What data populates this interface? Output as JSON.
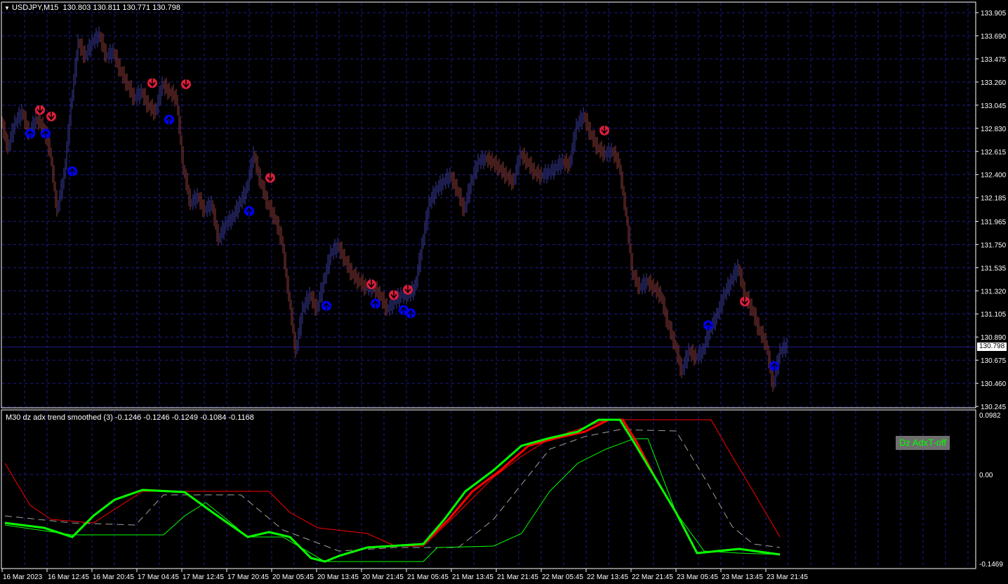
{
  "header": {
    "symbol": "USDJPY,M15",
    "ohlc": "130.803 130.811 130.771 130.798",
    "menu_icon": "triangle-down-icon"
  },
  "indicator": {
    "title": "M30 dz adx trend smoothed (3) -0.1246 -0.1246 -0.1249 -0.1084 -0.1168",
    "button_label": "Dz AdxT-off"
  },
  "colors": {
    "grid": "#1c1c8c",
    "sell": "#dc1e3c",
    "buy": "#0000ff",
    "line_green": "#00ff00",
    "line_red": "#ff0000",
    "dashed": "#a0a0a0",
    "price_line": "#1c1c8c"
  },
  "chart_data": [
    {
      "type": "candlestick-approx",
      "title": "USDJPY,M15",
      "ylim": [
        130.245,
        133.905
      ],
      "yticks": [
        "133.905",
        "133.690",
        "133.475",
        "133.260",
        "133.045",
        "132.830",
        "132.615",
        "132.400",
        "132.185",
        "131.965",
        "131.750",
        "131.535",
        "131.320",
        "131.105",
        "130.890",
        "130.675",
        "130.460",
        "130.245"
      ],
      "current_price": "130.798",
      "bar_step": 5,
      "closes": [
        132.91,
        132.65,
        132.88,
        132.98,
        132.78,
        132.91,
        132.85,
        132.62,
        132.07,
        132.39,
        133.04,
        133.63,
        133.5,
        133.63,
        133.7,
        133.5,
        133.54,
        133.37,
        133.24,
        133.11,
        133.17,
        133.04,
        132.98,
        133.24,
        133.17,
        133.11,
        132.46,
        132.13,
        132.2,
        132.07,
        132.13,
        131.8,
        131.94,
        132.0,
        132.13,
        132.26,
        132.59,
        132.33,
        132.13,
        132.0,
        131.8,
        131.28,
        130.76,
        131.15,
        131.28,
        131.15,
        131.41,
        131.67,
        131.74,
        131.61,
        131.48,
        131.41,
        131.35,
        131.35,
        131.28,
        131.15,
        131.22,
        131.28,
        131.28,
        131.35,
        131.74,
        132.13,
        132.26,
        132.33,
        132.39,
        132.26,
        132.07,
        132.33,
        132.52,
        132.55,
        132.52,
        132.46,
        132.39,
        132.33,
        132.59,
        132.52,
        132.42,
        132.39,
        132.42,
        132.46,
        132.52,
        132.49,
        132.85,
        132.95,
        132.78,
        132.65,
        132.59,
        132.62,
        132.52,
        132.07,
        131.48,
        131.35,
        131.41,
        131.35,
        131.28,
        131.02,
        130.83,
        130.57,
        130.76,
        130.7,
        130.76,
        130.96,
        131.09,
        131.28,
        131.41,
        131.54,
        131.28,
        131.15,
        130.96,
        130.83,
        130.44,
        130.76,
        130.81
      ],
      "sell_signals": [
        [
          27,
          133.0
        ],
        [
          35,
          132.94
        ],
        [
          107,
          133.25
        ],
        [
          131,
          133.24
        ],
        [
          191,
          132.37
        ],
        [
          263,
          131.38
        ],
        [
          279,
          131.28
        ],
        [
          289,
          131.33
        ],
        [
          429,
          132.81
        ],
        [
          529,
          131.22
        ]
      ],
      "buy_signals": [
        [
          20,
          132.78
        ],
        [
          31,
          132.78
        ],
        [
          50,
          132.43
        ],
        [
          119,
          132.91
        ],
        [
          176,
          132.06
        ],
        [
          231,
          131.18
        ],
        [
          266,
          131.2
        ],
        [
          286,
          131.14
        ],
        [
          291,
          131.11
        ],
        [
          503,
          131.0
        ],
        [
          550,
          130.62
        ]
      ],
      "xticks": [
        "16 Mar 2023",
        "16 Mar 12:45",
        "16 Mar 20:45",
        "17 Mar 04:45",
        "17 Mar 12:45",
        "17 Mar 20:45",
        "20 Mar 05:45",
        "20 Mar 13:45",
        "20 Mar 21:45",
        "21 Mar 05:45",
        "21 Mar 13:45",
        "21 Mar 21:45",
        "22 Mar 05:45",
        "22 Mar 13:45",
        "22 Mar 21:45",
        "23 Mar 05:45",
        "23 Mar 13:45",
        "23 Mar 21:45"
      ]
    },
    {
      "type": "line",
      "title": "M30 dz adx trend smoothed (3)",
      "ylim": [
        -0.1469,
        0.0982
      ],
      "yticks": [
        "0.0982",
        "0.00",
        "-0.1469"
      ],
      "series": [
        {
          "color": "#a0a0a0",
          "style": "dashed",
          "width": 1,
          "points": [
            [
              2,
              -0.0681
            ],
            [
              50,
              -0.0797
            ],
            [
              95,
              -0.0831
            ],
            [
              115,
              -0.0335
            ],
            [
              170,
              -0.0335
            ],
            [
              200,
              -0.0912
            ],
            [
              240,
              -0.1259
            ],
            [
              280,
              -0.1201
            ],
            [
              325,
              -0.1201
            ],
            [
              350,
              -0.0739
            ],
            [
              370,
              -0.0162
            ],
            [
              390,
              0.0416
            ],
            [
              415,
              0.0624
            ],
            [
              440,
              0.0739
            ],
            [
              480,
              0.0716
            ],
            [
              500,
              -0.0046
            ],
            [
              520,
              -0.0855
            ],
            [
              535,
              -0.1143
            ],
            [
              554,
              -0.1201
            ]
          ]
        },
        {
          "color": "#ff0000",
          "style": "solid",
          "width": 1,
          "points": [
            [
              2,
              0.0185
            ],
            [
              20,
              -0.0508
            ],
            [
              35,
              -0.0739
            ],
            [
              65,
              -0.0797
            ],
            [
              100,
              -0.0277
            ],
            [
              190,
              -0.0277
            ],
            [
              205,
              -0.0624
            ],
            [
              225,
              -0.0878
            ],
            [
              260,
              -0.097
            ],
            [
              280,
              -0.1178
            ],
            [
              300,
              -0.1178
            ],
            [
              320,
              -0.0739
            ],
            [
              350,
              -0.0046
            ],
            [
              370,
              0.03
            ],
            [
              390,
              0.0589
            ],
            [
              410,
              0.0739
            ],
            [
              430,
              0.0901
            ],
            [
              505,
              0.0901
            ],
            [
              520,
              0.03
            ],
            [
              535,
              -0.0277
            ],
            [
              554,
              -0.1028
            ]
          ]
        },
        {
          "color": "#00ff00",
          "style": "solid",
          "width": 1,
          "points": [
            [
              2,
              -0.0831
            ],
            [
              50,
              -0.0993
            ],
            [
              115,
              -0.0993
            ],
            [
              130,
              -0.0681
            ],
            [
              145,
              -0.0462
            ],
            [
              160,
              -0.0739
            ],
            [
              175,
              -0.1028
            ],
            [
              200,
              -0.1028
            ],
            [
              230,
              -0.1432
            ],
            [
              300,
              -0.1432
            ],
            [
              310,
              -0.1201
            ],
            [
              350,
              -0.1178
            ],
            [
              370,
              -0.097
            ],
            [
              390,
              -0.0277
            ],
            [
              410,
              0.0185
            ],
            [
              430,
              0.0416
            ],
            [
              450,
              0.0589
            ],
            [
              460,
              0.0589
            ],
            [
              480,
              -0.0624
            ],
            [
              500,
              -0.1259
            ],
            [
              525,
              -0.1293
            ],
            [
              554,
              -0.1316
            ]
          ]
        },
        {
          "color": "#ff0000",
          "style": "solid",
          "width": 3,
          "points": [
            [
              2,
              -0.0797
            ],
            [
              30,
              -0.0878
            ],
            [
              50,
              -0.1028
            ],
            [
              65,
              -0.0681
            ],
            [
              80,
              -0.0416
            ],
            [
              100,
              -0.0254
            ],
            [
              130,
              -0.0289
            ],
            [
              150,
              -0.0624
            ],
            [
              175,
              -0.1028
            ],
            [
              190,
              -0.0947
            ],
            [
              205,
              -0.1028
            ],
            [
              220,
              -0.1374
            ],
            [
              230,
              -0.1432
            ],
            [
              240,
              -0.1339
            ],
            [
              260,
              -0.1201
            ],
            [
              300,
              -0.1143
            ],
            [
              318,
              -0.0739
            ],
            [
              335,
              -0.0277
            ],
            [
              355,
              0.0069
            ],
            [
              375,
              0.0473
            ],
            [
              395,
              0.06
            ],
            [
              415,
              0.0704
            ],
            [
              432,
              0.0901
            ],
            [
              442,
              0.0901
            ],
            [
              452,
              0.0531
            ],
            [
              465,
              -0.0046
            ],
            [
              480,
              -0.0624
            ],
            [
              495,
              -0.1293
            ],
            [
              525,
              -0.1224
            ],
            [
              554,
              -0.1316
            ]
          ]
        },
        {
          "color": "#00ff00",
          "style": "solid",
          "width": 3,
          "points": [
            [
              2,
              -0.0797
            ],
            [
              30,
              -0.0878
            ],
            [
              50,
              -0.1028
            ],
            [
              65,
              -0.0681
            ],
            [
              80,
              -0.0416
            ],
            [
              100,
              -0.0254
            ],
            [
              130,
              -0.0289
            ],
            [
              150,
              -0.0624
            ],
            [
              175,
              -0.1028
            ],
            [
              190,
              -0.0947
            ],
            [
              205,
              -0.1028
            ],
            [
              220,
              -0.1374
            ],
            [
              230,
              -0.1432
            ],
            [
              240,
              -0.1339
            ],
            [
              260,
              -0.1201
            ],
            [
              300,
              -0.1143
            ],
            [
              315,
              -0.0739
            ],
            [
              330,
              -0.0277
            ],
            [
              350,
              0.0069
            ],
            [
              370,
              0.0473
            ],
            [
              390,
              0.06
            ],
            [
              410,
              0.0704
            ],
            [
              425,
              0.0901
            ],
            [
              440,
              0.0901
            ],
            [
              450,
              0.0531
            ],
            [
              465,
              -0.0046
            ],
            [
              480,
              -0.0624
            ],
            [
              495,
              -0.1293
            ],
            [
              525,
              -0.1224
            ],
            [
              554,
              -0.1316
            ]
          ]
        }
      ]
    }
  ]
}
